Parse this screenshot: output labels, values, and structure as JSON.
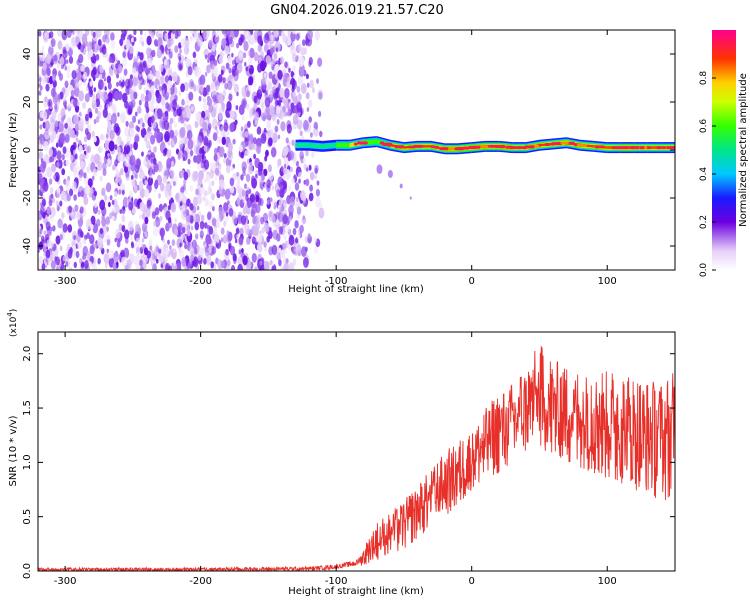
{
  "title": "GN04.2026.019.21.57.C20",
  "chart_data": [
    {
      "type": "heatmap",
      "name": "spectrogram",
      "xlabel": "Height of straight line (km)",
      "ylabel": "Frequency (Hz)",
      "xlim": [
        -320,
        150
      ],
      "ylim": [
        -50,
        50
      ],
      "xticks": [
        -300,
        -200,
        -100,
        0,
        100
      ],
      "yticks": [
        -40,
        -20,
        0,
        20,
        40
      ],
      "noise_region_x": [
        -320,
        -108
      ],
      "signal_region_x": [
        -132,
        150
      ],
      "signal_center_hz": 1,
      "signal_points": [
        {
          "x": -130,
          "y": 2,
          "a": 0.7
        },
        {
          "x": -120,
          "y": 2,
          "a": 0.65
        },
        {
          "x": -110,
          "y": 1.5,
          "a": 0.6
        },
        {
          "x": -100,
          "y": 2,
          "a": 0.75
        },
        {
          "x": -90,
          "y": 2,
          "a": 0.85
        },
        {
          "x": -80,
          "y": 3,
          "a": 0.8
        },
        {
          "x": -70,
          "y": 3.5,
          "a": 0.75
        },
        {
          "x": -60,
          "y": 2,
          "a": 0.85
        },
        {
          "x": -50,
          "y": 1,
          "a": 0.9
        },
        {
          "x": -40,
          "y": 1.5,
          "a": 0.95
        },
        {
          "x": -30,
          "y": 1.5,
          "a": 0.9
        },
        {
          "x": -20,
          "y": 0.5,
          "a": 0.95
        },
        {
          "x": -10,
          "y": 0.5,
          "a": 0.95
        },
        {
          "x": 0,
          "y": 1,
          "a": 0.95
        },
        {
          "x": 10,
          "y": 1.5,
          "a": 0.98
        },
        {
          "x": 20,
          "y": 1.5,
          "a": 0.95
        },
        {
          "x": 30,
          "y": 1,
          "a": 0.92
        },
        {
          "x": 40,
          "y": 1,
          "a": 0.9
        },
        {
          "x": 50,
          "y": 2,
          "a": 0.95
        },
        {
          "x": 60,
          "y": 2.5,
          "a": 0.9
        },
        {
          "x": 70,
          "y": 3,
          "a": 0.95
        },
        {
          "x": 80,
          "y": 2,
          "a": 0.9
        },
        {
          "x": 90,
          "y": 1.5,
          "a": 0.92
        },
        {
          "x": 100,
          "y": 1,
          "a": 0.88
        },
        {
          "x": 110,
          "y": 1,
          "a": 0.92
        },
        {
          "x": 120,
          "y": 1,
          "a": 0.95
        },
        {
          "x": 130,
          "y": 1,
          "a": 0.9
        },
        {
          "x": 140,
          "y": 1,
          "a": 0.92
        },
        {
          "x": 150,
          "y": 1,
          "a": 0.9
        }
      ],
      "colorbar": {
        "label": "Normalized spectral amplitude",
        "range": [
          0,
          1
        ],
        "ticks": [
          "0.0",
          "0.2",
          "0.4",
          "0.6",
          "0.8"
        ]
      }
    },
    {
      "type": "line",
      "name": "snr",
      "xlabel": "Height of straight line (km)",
      "ylabel": "SNR (10 * v/v)",
      "scale_label_base": "(x10",
      "scale_label_exp": "4",
      "scale_label_end": ")",
      "xlim": [
        -320,
        150
      ],
      "ylim": [
        0,
        2.2
      ],
      "xticks": [
        -300,
        -200,
        -100,
        0,
        100
      ],
      "yticks": [
        "0.0",
        "0.5",
        "1.0",
        "1.5",
        "2.0"
      ],
      "color": "#e8302a",
      "series": [
        {
          "name": "SNR envelope",
          "x": [
            -320,
            -200,
            -120,
            -100,
            -85,
            -80,
            -75,
            -70,
            -60,
            -50,
            -40,
            -30,
            -20,
            -10,
            0,
            10,
            20,
            30,
            40,
            50,
            60,
            70,
            80,
            90,
            100,
            110,
            120,
            130,
            140,
            150
          ],
          "lower": [
            0.0,
            0.0,
            0.0,
            0.02,
            0.05,
            0.05,
            0.08,
            0.1,
            0.15,
            0.2,
            0.3,
            0.4,
            0.5,
            0.6,
            0.75,
            0.85,
            0.9,
            1.0,
            1.1,
            1.1,
            1.05,
            1.0,
            0.95,
            0.9,
            0.85,
            0.8,
            0.75,
            0.7,
            0.65,
            0.65
          ],
          "upper": [
            0.03,
            0.03,
            0.04,
            0.06,
            0.1,
            0.2,
            0.35,
            0.45,
            0.55,
            0.65,
            0.8,
            0.95,
            1.1,
            1.2,
            1.3,
            1.5,
            1.65,
            1.75,
            1.9,
            2.1,
            1.95,
            1.9,
            1.85,
            1.9,
            1.85,
            1.85,
            1.8,
            1.75,
            1.8,
            1.85
          ]
        }
      ]
    }
  ]
}
